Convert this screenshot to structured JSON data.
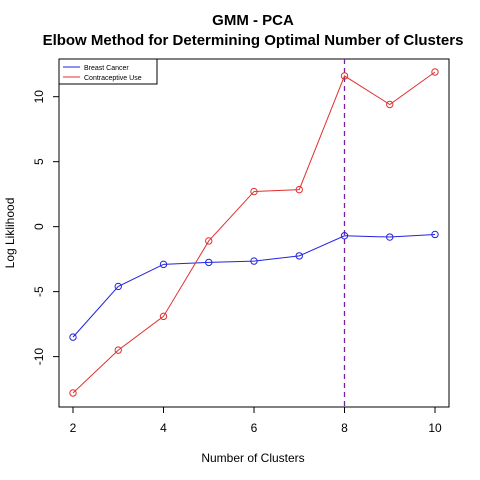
{
  "chart_data": {
    "type": "line",
    "title": "GMM - PCA",
    "subtitle": "Elbow Method for Determining Optimal Number of Clusters",
    "xlabel": "Number of Clusters",
    "ylabel": "Log Liklihood",
    "x": [
      2,
      3,
      4,
      5,
      6,
      7,
      8,
      9,
      10
    ],
    "xlim": [
      2,
      10
    ],
    "ylim": [
      -12.8,
      11.9
    ],
    "xticks": [
      2,
      4,
      6,
      8,
      10
    ],
    "yticks": [
      -10,
      -5,
      0,
      5,
      10
    ],
    "grid": false,
    "legend_position": "top-left",
    "vline": {
      "x": 8,
      "style": "dashed",
      "color": "#7a1fa2"
    },
    "series": [
      {
        "name": "Breast Cancer",
        "color": "#2222e0",
        "values": [
          -8.5,
          -4.6,
          -2.9,
          -2.75,
          -2.65,
          -2.25,
          -0.7,
          -0.8,
          -0.6
        ]
      },
      {
        "name": "Contraceptive Use",
        "color": "#e03030",
        "values": [
          -12.8,
          -9.5,
          -6.9,
          -1.1,
          2.7,
          2.85,
          11.6,
          9.4,
          11.9
        ]
      }
    ]
  }
}
